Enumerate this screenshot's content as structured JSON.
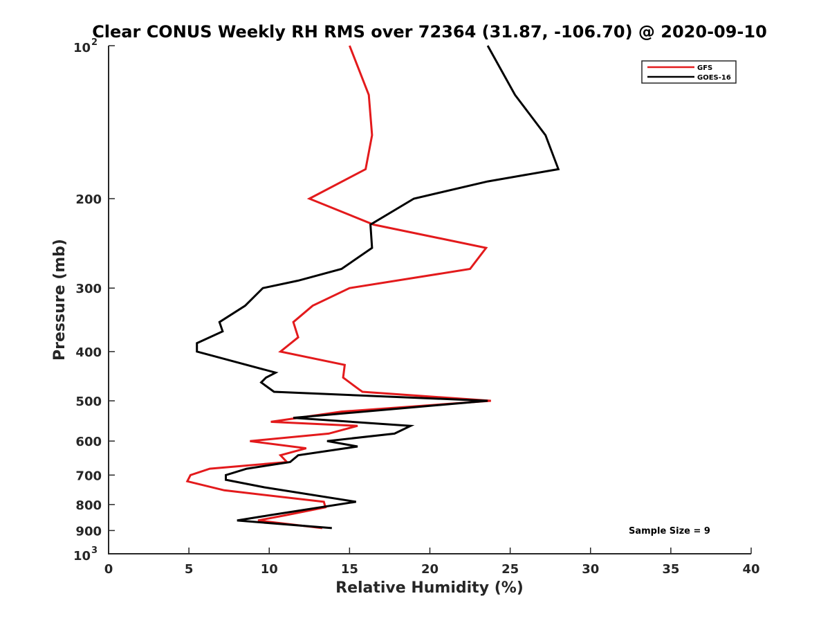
{
  "chart_data": {
    "type": "line",
    "title": "Clear CONUS Weekly RH RMS over 72364 (31.87, -106.70) @ 2020-09-10",
    "xlabel": "Relative Humidity (%)",
    "ylabel": "Pressure (mb)",
    "xlim": [
      0,
      40
    ],
    "ylim": [
      100,
      1000
    ],
    "yscale": "log",
    "y_reversed": true,
    "grid": false,
    "legend_position": "top-right",
    "x_ticks": [
      0,
      5,
      10,
      15,
      20,
      25,
      30,
      35,
      40
    ],
    "y_ticks": [
      {
        "value": 100,
        "base": "10",
        "exponent": "2"
      },
      {
        "value": 200,
        "label": "200"
      },
      {
        "value": 300,
        "label": "300"
      },
      {
        "value": 400,
        "label": "400"
      },
      {
        "value": 500,
        "label": "500"
      },
      {
        "value": 600,
        "label": "600"
      },
      {
        "value": 700,
        "label": "700"
      },
      {
        "value": 800,
        "label": "800"
      },
      {
        "value": 900,
        "label": "900"
      },
      {
        "value": 1000,
        "base": "10",
        "exponent": "3"
      }
    ],
    "annotation": "Sample Size = 9",
    "series": [
      {
        "name": "GFS",
        "color": "#e31a1c",
        "points": [
          [
            15.0,
            100
          ],
          [
            16.2,
            125
          ],
          [
            16.4,
            150
          ],
          [
            16.0,
            175
          ],
          [
            12.5,
            200
          ],
          [
            16.5,
            225
          ],
          [
            23.5,
            250
          ],
          [
            22.5,
            275
          ],
          [
            15.0,
            300
          ],
          [
            12.7,
            325
          ],
          [
            11.5,
            350
          ],
          [
            11.8,
            375
          ],
          [
            10.7,
            400
          ],
          [
            14.7,
            425
          ],
          [
            14.6,
            450
          ],
          [
            15.6,
            475
          ],
          [
            15.8,
            480
          ],
          [
            23.8,
            500
          ],
          [
            14.5,
            525
          ],
          [
            10.1,
            550
          ],
          [
            15.5,
            560
          ],
          [
            13.7,
            580
          ],
          [
            8.8,
            600
          ],
          [
            12.3,
            620
          ],
          [
            10.7,
            640
          ],
          [
            11.1,
            660
          ],
          [
            6.3,
            680
          ],
          [
            5.1,
            700
          ],
          [
            4.9,
            720
          ],
          [
            7.2,
            750
          ],
          [
            13.4,
            790
          ],
          [
            13.5,
            810
          ],
          [
            11.0,
            840
          ],
          [
            9.3,
            860
          ],
          [
            13.3,
            890
          ]
        ]
      },
      {
        "name": "GOES-16",
        "color": "#000000",
        "points": [
          [
            23.6,
            100
          ],
          [
            25.3,
            125
          ],
          [
            27.2,
            150
          ],
          [
            28.0,
            175
          ],
          [
            23.6,
            185
          ],
          [
            19.0,
            200
          ],
          [
            16.3,
            225
          ],
          [
            16.4,
            250
          ],
          [
            14.5,
            275
          ],
          [
            11.8,
            290
          ],
          [
            9.6,
            300
          ],
          [
            8.5,
            325
          ],
          [
            6.9,
            350
          ],
          [
            7.1,
            365
          ],
          [
            5.5,
            385
          ],
          [
            5.5,
            400
          ],
          [
            10.4,
            440
          ],
          [
            9.8,
            450
          ],
          [
            9.5,
            460
          ],
          [
            10.3,
            480
          ],
          [
            23.6,
            500
          ],
          [
            11.5,
            540
          ],
          [
            18.8,
            560
          ],
          [
            17.8,
            580
          ],
          [
            13.6,
            600
          ],
          [
            15.5,
            615
          ],
          [
            11.8,
            640
          ],
          [
            11.3,
            660
          ],
          [
            8.6,
            680
          ],
          [
            7.3,
            700
          ],
          [
            7.3,
            715
          ],
          [
            9.7,
            740
          ],
          [
            15.4,
            790
          ],
          [
            10.0,
            840
          ],
          [
            8.0,
            860
          ],
          [
            13.9,
            890
          ]
        ]
      }
    ]
  }
}
